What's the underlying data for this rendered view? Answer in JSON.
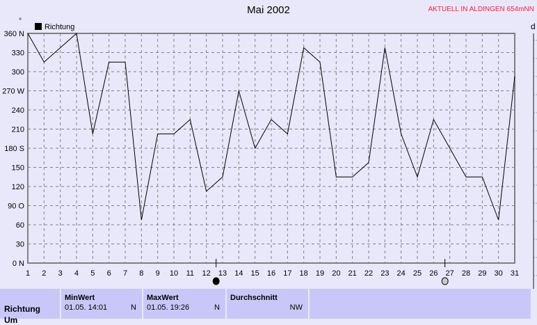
{
  "station_label": "AKTUELL IN ALDINGEN 654mNN",
  "right_axis_label": "d",
  "chart_data": {
    "type": "line",
    "title": "Mai 2002",
    "ylabel": "°",
    "legend": [
      {
        "name": "Richtung",
        "color": "#000000"
      }
    ],
    "legend_placement": "top-left",
    "grid": true,
    "xlim": [
      1,
      31
    ],
    "ylim": [
      0,
      360
    ],
    "x_ticks": [
      "1",
      "2",
      "3",
      "4",
      "5",
      "6",
      "7",
      "8",
      "9",
      "10",
      "11",
      "12",
      "13",
      "14",
      "15",
      "16",
      "17",
      "18",
      "19",
      "20",
      "21",
      "22",
      "23",
      "24",
      "25",
      "26",
      "27",
      "28",
      "29",
      "30",
      "31"
    ],
    "y_ticks": [
      {
        "v": 360,
        "l": "360 N"
      },
      {
        "v": 330,
        "l": "330"
      },
      {
        "v": 300,
        "l": "300"
      },
      {
        "v": 270,
        "l": "270 W"
      },
      {
        "v": 240,
        "l": "240"
      },
      {
        "v": 210,
        "l": "210"
      },
      {
        "v": 180,
        "l": "180 S"
      },
      {
        "v": 150,
        "l": "150"
      },
      {
        "v": 120,
        "l": "120"
      },
      {
        "v": 90,
        "l": "90  O"
      },
      {
        "v": 60,
        "l": "60"
      },
      {
        "v": 30,
        "l": "30"
      },
      {
        "v": 0,
        "l": "0   N"
      }
    ],
    "series": [
      {
        "name": "Richtung",
        "x": [
          1,
          2,
          3,
          4,
          5,
          6,
          7,
          8,
          9,
          10,
          11,
          12,
          13,
          14,
          15,
          16,
          17,
          18,
          19,
          20,
          21,
          22,
          23,
          24,
          25,
          26,
          27,
          28,
          29,
          30,
          31
        ],
        "values": [
          360,
          315,
          337.5,
          360,
          202.5,
          315,
          315,
          67.5,
          202.5,
          202.5,
          225,
          112.5,
          135,
          270,
          180,
          225,
          202.5,
          337.5,
          315,
          135,
          135,
          157.5,
          337.5,
          202.5,
          135,
          225,
          180,
          135,
          135,
          67.5,
          292.5
        ]
      }
    ],
    "moon_phases": [
      {
        "day": 12.6,
        "phase": "new-moon"
      },
      {
        "day": 26.7,
        "phase": "full-moon"
      }
    ]
  },
  "table": {
    "row_label": "Richtung",
    "row_label_next": "Um",
    "columns": [
      {
        "header": "MinWert",
        "date": "01.05.  14:01",
        "value": "N"
      },
      {
        "header": "MaxWert",
        "date": "01.05.  19:26",
        "value": "N"
      },
      {
        "header": "Durchschnitt",
        "date": "",
        "value": "NW"
      }
    ]
  }
}
